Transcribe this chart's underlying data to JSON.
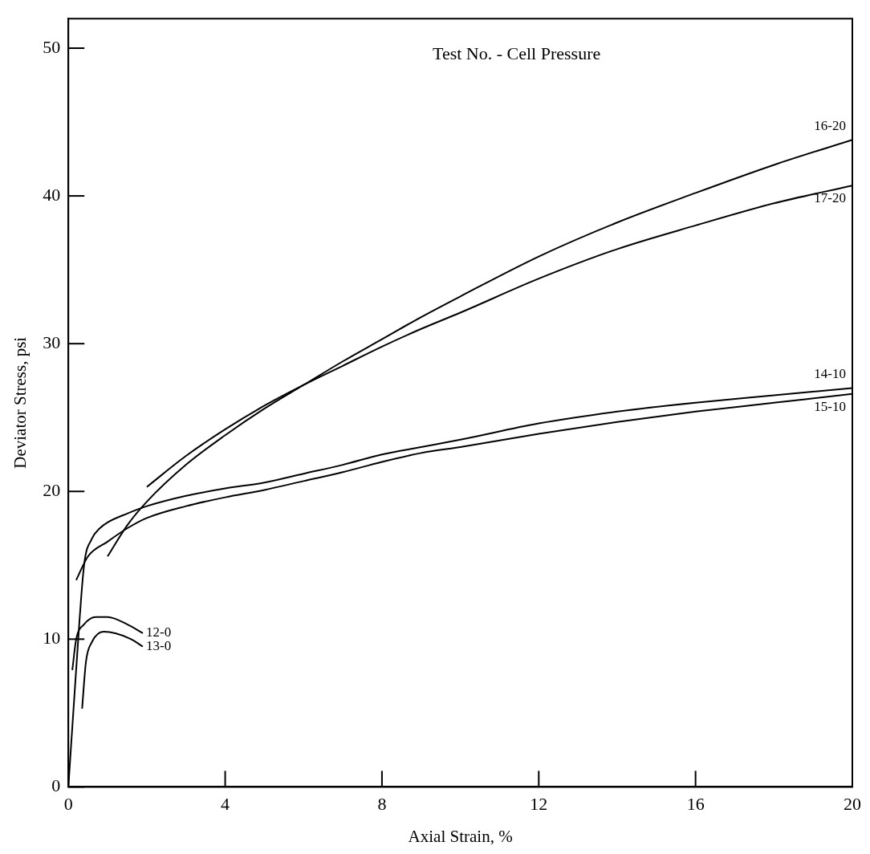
{
  "chart_data": {
    "type": "line",
    "xlabel": "Axial Strain, %",
    "ylabel": "Deviator Stress, psi",
    "annotations": [
      "Test No. - Cell Pressure"
    ],
    "xlim": [
      0,
      20
    ],
    "ylim": [
      0,
      52
    ],
    "xticks": [
      0,
      4,
      8,
      12,
      16,
      20
    ],
    "yticks": [
      0,
      10,
      20,
      30,
      40,
      50
    ],
    "grid": false,
    "legend": false,
    "marker": "none",
    "line_style": "solid",
    "series": [
      {
        "name": "16-20",
        "color": "#000000",
        "x": [
          1,
          1.5,
          2,
          3,
          4,
          5,
          6,
          7,
          8,
          9,
          10,
          12,
          14,
          16,
          18,
          20
        ],
        "values": [
          15.6,
          17.7,
          19.3,
          21.8,
          23.8,
          25.6,
          27.2,
          28.8,
          30.3,
          31.8,
          33.2,
          35.9,
          38.2,
          40.2,
          42.1,
          43.8
        ]
      },
      {
        "name": "17-20",
        "color": "#000000",
        "x": [
          2,
          3,
          4,
          5,
          6,
          7,
          8,
          9,
          10,
          12,
          14,
          16,
          18,
          20
        ],
        "values": [
          20.3,
          22.4,
          24.2,
          25.8,
          27.2,
          28.5,
          29.8,
          31,
          32.1,
          34.4,
          36.4,
          38,
          39.5,
          40.7
        ]
      },
      {
        "name": "14-10",
        "color": "#000000",
        "x": [
          0,
          0.2,
          0.4,
          0.6,
          0.8,
          1,
          1.5,
          2,
          3,
          4,
          5,
          6,
          7,
          8,
          9,
          10,
          12,
          14,
          16,
          18,
          20
        ],
        "values": [
          0,
          8,
          15,
          16.8,
          17.5,
          17.9,
          18.5,
          19,
          19.7,
          20.2,
          20.6,
          21.2,
          21.8,
          22.5,
          23,
          23.5,
          24.6,
          25.4,
          26,
          26.5,
          27
        ]
      },
      {
        "name": "15-10",
        "color": "#000000",
        "x": [
          0.2,
          0.5,
          1,
          1.5,
          2,
          3,
          4,
          5,
          6,
          7,
          8,
          9,
          10,
          12,
          14,
          16,
          18,
          20
        ],
        "values": [
          14,
          15.6,
          16.6,
          17.5,
          18.2,
          19,
          19.6,
          20.1,
          20.7,
          21.3,
          22,
          22.6,
          23,
          23.9,
          24.7,
          25.4,
          26,
          26.6
        ]
      },
      {
        "name": "12-0",
        "color": "#000000",
        "x": [
          0.1,
          0.2,
          0.4,
          0.7,
          1,
          1.5,
          1.9
        ],
        "values": [
          7.9,
          10,
          11,
          11.5,
          11.5,
          11,
          10.4
        ]
      },
      {
        "name": "13-0",
        "color": "#000000",
        "x": [
          0.35,
          0.45,
          0.6,
          0.9,
          1.2,
          1.6,
          1.9
        ],
        "values": [
          5.3,
          8.5,
          9.8,
          10.5,
          10.4,
          10,
          9.5
        ]
      }
    ]
  }
}
